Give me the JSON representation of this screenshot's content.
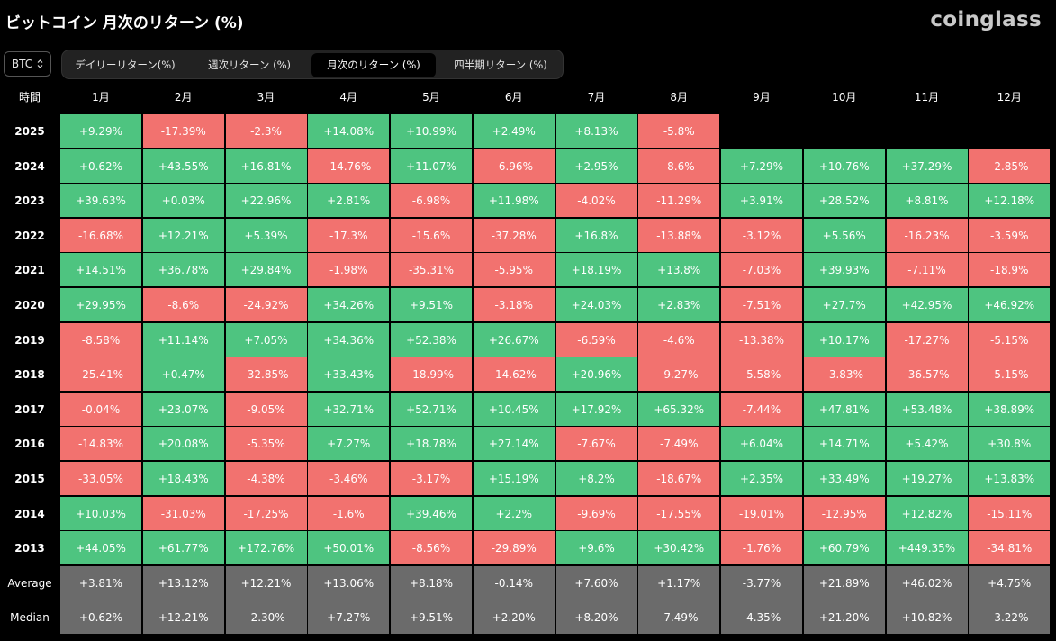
{
  "title": "ビットコイン 月次のリターン (%)",
  "brand": "coinglass",
  "coin_selector": {
    "value": "BTC",
    "icon": "up-down-chevron-icon"
  },
  "tabs": [
    {
      "label": "デイリーリターン(%)",
      "active": false
    },
    {
      "label": "週次リターン (%)",
      "active": false
    },
    {
      "label": "月次のリターン (%)",
      "active": true
    },
    {
      "label": "四半期リターン (%)",
      "active": false
    }
  ],
  "colors": {
    "positive": "#4ec480",
    "negative": "#f2726f",
    "stat": "#6b6b6b",
    "background": "#000000"
  },
  "chart_data": {
    "type": "heatmap",
    "title": "ビットコイン 月次のリターン (%)",
    "corner_label": "時間",
    "columns": [
      "1月",
      "2月",
      "3月",
      "4月",
      "5月",
      "6月",
      "7月",
      "8月",
      "9月",
      "10月",
      "11月",
      "12月"
    ],
    "rows": [
      {
        "label": "2025",
        "values": [
          "+9.29%",
          "-17.39%",
          "-2.3%",
          "+14.08%",
          "+10.99%",
          "+2.49%",
          "+8.13%",
          "-5.8%",
          "",
          "",
          "",
          ""
        ]
      },
      {
        "label": "2024",
        "values": [
          "+0.62%",
          "+43.55%",
          "+16.81%",
          "-14.76%",
          "+11.07%",
          "-6.96%",
          "+2.95%",
          "-8.6%",
          "+7.29%",
          "+10.76%",
          "+37.29%",
          "-2.85%"
        ]
      },
      {
        "label": "2023",
        "values": [
          "+39.63%",
          "+0.03%",
          "+22.96%",
          "+2.81%",
          "-6.98%",
          "+11.98%",
          "-4.02%",
          "-11.29%",
          "+3.91%",
          "+28.52%",
          "+8.81%",
          "+12.18%"
        ]
      },
      {
        "label": "2022",
        "values": [
          "-16.68%",
          "+12.21%",
          "+5.39%",
          "-17.3%",
          "-15.6%",
          "-37.28%",
          "+16.8%",
          "-13.88%",
          "-3.12%",
          "+5.56%",
          "-16.23%",
          "-3.59%"
        ]
      },
      {
        "label": "2021",
        "values": [
          "+14.51%",
          "+36.78%",
          "+29.84%",
          "-1.98%",
          "-35.31%",
          "-5.95%",
          "+18.19%",
          "+13.8%",
          "-7.03%",
          "+39.93%",
          "-7.11%",
          "-18.9%"
        ]
      },
      {
        "label": "2020",
        "values": [
          "+29.95%",
          "-8.6%",
          "-24.92%",
          "+34.26%",
          "+9.51%",
          "-3.18%",
          "+24.03%",
          "+2.83%",
          "-7.51%",
          "+27.7%",
          "+42.95%",
          "+46.92%"
        ]
      },
      {
        "label": "2019",
        "values": [
          "-8.58%",
          "+11.14%",
          "+7.05%",
          "+34.36%",
          "+52.38%",
          "+26.67%",
          "-6.59%",
          "-4.6%",
          "-13.38%",
          "+10.17%",
          "-17.27%",
          "-5.15%"
        ]
      },
      {
        "label": "2018",
        "values": [
          "-25.41%",
          "+0.47%",
          "-32.85%",
          "+33.43%",
          "-18.99%",
          "-14.62%",
          "+20.96%",
          "-9.27%",
          "-5.58%",
          "-3.83%",
          "-36.57%",
          "-5.15%"
        ]
      },
      {
        "label": "2017",
        "values": [
          "-0.04%",
          "+23.07%",
          "-9.05%",
          "+32.71%",
          "+52.71%",
          "+10.45%",
          "+17.92%",
          "+65.32%",
          "-7.44%",
          "+47.81%",
          "+53.48%",
          "+38.89%"
        ]
      },
      {
        "label": "2016",
        "values": [
          "-14.83%",
          "+20.08%",
          "-5.35%",
          "+7.27%",
          "+18.78%",
          "+27.14%",
          "-7.67%",
          "-7.49%",
          "+6.04%",
          "+14.71%",
          "+5.42%",
          "+30.8%"
        ]
      },
      {
        "label": "2015",
        "values": [
          "-33.05%",
          "+18.43%",
          "-4.38%",
          "-3.46%",
          "-3.17%",
          "+15.19%",
          "+8.2%",
          "-18.67%",
          "+2.35%",
          "+33.49%",
          "+19.27%",
          "+13.83%"
        ]
      },
      {
        "label": "2014",
        "values": [
          "+10.03%",
          "-31.03%",
          "-17.25%",
          "-1.6%",
          "+39.46%",
          "+2.2%",
          "-9.69%",
          "-17.55%",
          "-19.01%",
          "-12.95%",
          "+12.82%",
          "-15.11%"
        ]
      },
      {
        "label": "2013",
        "values": [
          "+44.05%",
          "+61.77%",
          "+172.76%",
          "+50.01%",
          "-8.56%",
          "-29.89%",
          "+9.6%",
          "+30.42%",
          "-1.76%",
          "+60.79%",
          "+449.35%",
          "-34.81%"
        ]
      }
    ],
    "summary_rows": [
      {
        "label": "Average",
        "values": [
          "+3.81%",
          "+13.12%",
          "+12.21%",
          "+13.06%",
          "+8.18%",
          "-0.14%",
          "+7.60%",
          "+1.17%",
          "-3.77%",
          "+21.89%",
          "+46.02%",
          "+4.75%"
        ]
      },
      {
        "label": "Median",
        "values": [
          "+0.62%",
          "+12.21%",
          "-2.30%",
          "+7.27%",
          "+9.51%",
          "+2.20%",
          "+8.20%",
          "-7.49%",
          "-4.35%",
          "+21.20%",
          "+10.82%",
          "-3.22%"
        ]
      }
    ]
  }
}
